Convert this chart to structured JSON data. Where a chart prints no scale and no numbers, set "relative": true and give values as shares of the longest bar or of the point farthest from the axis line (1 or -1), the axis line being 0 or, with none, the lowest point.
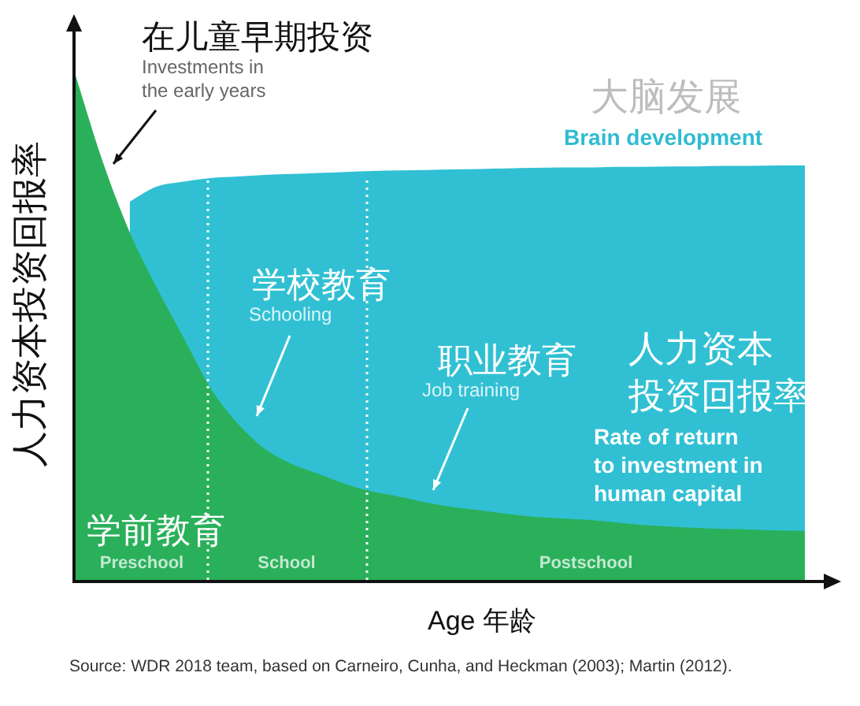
{
  "chart_data": {
    "type": "area",
    "relative": true,
    "categories": [
      null,
      null,
      null,
      null,
      null,
      null,
      null,
      null,
      null,
      null,
      null,
      null,
      null,
      null,
      null,
      null,
      null,
      null,
      null,
      null,
      null,
      null,
      null,
      null,
      null,
      null,
      null,
      null
    ],
    "series": [
      {
        "color": "#2ab05a",
        "values": [
          1,
          0.83,
          0.69,
          0.58,
          0.48,
          0.38,
          0.31,
          0.26,
          0.23,
          0.21,
          0.19,
          0.175,
          0.165,
          0.153,
          0.144,
          0.138,
          0.131,
          0.125,
          0.122,
          0.119,
          0.114,
          0.109,
          0.106,
          0.103,
          0.101,
          0.1,
          0.098,
          0.097
        ]
      },
      {
        "color": "#31c0d3",
        "values": [
          null,
          null,
          0.75,
          0.78,
          0.79,
          0.797,
          0.8,
          0.803,
          0.805,
          0.807,
          0.809,
          0.811,
          0.812,
          0.813,
          0.814,
          0.815,
          0.816,
          0.817,
          0.818,
          0.818,
          0.819,
          0.819,
          0.82,
          0.82,
          0.821,
          0.821,
          0.822,
          0.822
        ]
      }
    ],
    "xlabel": "Age 年龄",
    "ylabel": "人力资本投资回报率",
    "annotations": [
      "在儿童早期投资",
      "Investments in the early years",
      "大脑发展",
      "Brain development",
      "学校教育",
      "Schooling",
      "职业教育",
      "Job training",
      "人力资本投资回报率",
      "Rate of return to investment in human capital",
      "学前教育",
      "Preschool",
      "School",
      "Postschool",
      "Source: WDR 2018 team, based on Carneiro, Cunha, and Heckman (2003); Martin (2012)."
    ]
  }
}
